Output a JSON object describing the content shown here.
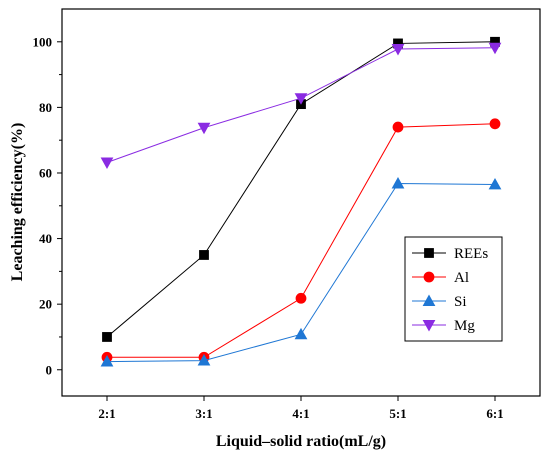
{
  "chart_data": {
    "type": "line",
    "xlabel": "Liquid–solid ratio(mL/g)",
    "ylabel": "Leaching efficiency(%)",
    "categories": [
      "2:1",
      "3:1",
      "4:1",
      "5:1",
      "6:1"
    ],
    "ylim": [
      -8,
      110
    ],
    "yticks": [
      0,
      20,
      40,
      60,
      80,
      100
    ],
    "grid": false,
    "legend_position": "bottom-right",
    "series": [
      {
        "name": "REEs",
        "color": "#000000",
        "marker": "square",
        "values": [
          10,
          35,
          81,
          99.5,
          100
        ]
      },
      {
        "name": "Al",
        "color": "#ff0000",
        "marker": "circle",
        "values": [
          3.8,
          3.8,
          21.8,
          74,
          75
        ]
      },
      {
        "name": "Si",
        "color": "#1f77d4",
        "marker": "triangle-up",
        "values": [
          2.5,
          2.8,
          10.8,
          56.8,
          56.5
        ]
      },
      {
        "name": "Mg",
        "color": "#8a2be2",
        "marker": "triangle-down",
        "values": [
          63.2,
          73.8,
          82.8,
          97.8,
          98.2
        ]
      }
    ]
  }
}
